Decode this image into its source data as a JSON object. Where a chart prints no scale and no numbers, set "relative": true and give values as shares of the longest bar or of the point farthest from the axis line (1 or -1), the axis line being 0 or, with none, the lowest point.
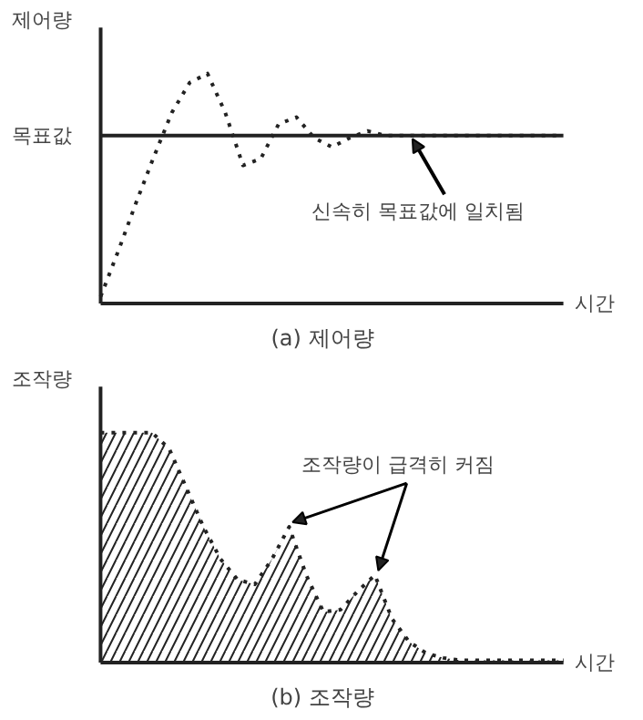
{
  "chart_data": [
    {
      "type": "line",
      "title": "(a) 제어량",
      "ylabel": "제어량",
      "xlabel": "시간",
      "relative": true,
      "line_style": "dotted",
      "marker": "none",
      "categories": [
        null,
        null,
        null,
        null,
        null,
        null,
        null,
        null,
        null,
        null,
        null,
        null,
        null,
        null,
        null,
        null,
        null,
        null,
        null,
        null,
        null,
        null,
        null,
        null,
        null,
        null,
        null
      ],
      "series": [
        {
          "color": "#222222",
          "values": [
            0.03,
            0.23,
            0.44,
            0.64,
            0.83,
            0.96,
            1.0,
            0.83,
            0.6,
            0.63,
            0.78,
            0.81,
            0.72,
            0.68,
            0.72,
            0.75,
            0.73,
            0.73,
            0.73,
            0.73,
            0.73,
            0.73,
            0.73,
            0.73,
            0.73,
            0.73,
            0.73
          ]
        }
      ],
      "ref_lines": [
        {
          "axis": "y",
          "value": 0.73,
          "label": "목표값",
          "color": "#222222",
          "line_style": "solid"
        }
      ],
      "annotations": [
        "신속히 목표값에 일치됨"
      ]
    },
    {
      "type": "area",
      "title": "(b) 조작량",
      "ylabel": "조작량",
      "xlabel": "시간",
      "relative": true,
      "line_style": "dotted",
      "marker": "none",
      "categories": [
        null,
        null,
        null,
        null,
        null,
        null,
        null,
        null,
        null,
        null,
        null,
        null,
        null,
        null,
        null,
        null,
        null,
        null,
        null,
        null,
        null,
        null,
        null,
        null,
        null,
        null,
        null,
        null
      ],
      "series": [
        {
          "color": "#222222",
          "values": [
            1.0,
            1.0,
            1.0,
            1.0,
            0.93,
            0.76,
            0.59,
            0.45,
            0.36,
            0.34,
            0.45,
            0.59,
            0.38,
            0.22,
            0.23,
            0.31,
            0.38,
            0.19,
            0.09,
            0.04,
            0.02,
            0.01,
            0.01,
            0.01,
            0.01,
            0.01,
            0.01,
            0.01
          ]
        }
      ],
      "annotations": [
        "조작량이 급격히 커짐"
      ]
    }
  ]
}
